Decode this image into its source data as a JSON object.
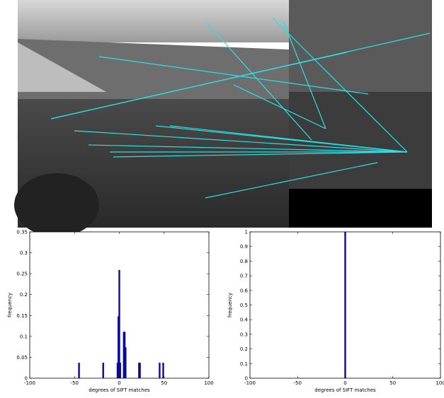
{
  "chart_data": [
    {
      "type": "bar",
      "x": [
        -45,
        -18,
        -2,
        -1,
        0,
        1,
        5,
        6,
        7,
        22,
        23,
        45,
        49
      ],
      "values": [
        0.037,
        0.037,
        0.037,
        0.148,
        0.259,
        0.037,
        0.111,
        0.111,
        0.074,
        0.037,
        0.037,
        0.037,
        0.037
      ],
      "color": "#0a0a96",
      "xlabel": "degrees of SIFT matches",
      "ylabel": "frequency",
      "xlim": [
        -100,
        100
      ],
      "xticks": [
        -100,
        -50,
        0,
        50,
        100
      ],
      "ylim": [
        0,
        0.35
      ],
      "yticks": [
        0,
        0.05,
        0.1,
        0.15,
        0.2,
        0.25,
        0.3,
        0.35
      ]
    },
    {
      "type": "bar",
      "x": [
        0
      ],
      "values": [
        1
      ],
      "color": "#0a0a96",
      "xlabel": "degrees of SIFT matches",
      "ylabel": "frequency",
      "xlim": [
        -100,
        100
      ],
      "xticks": [
        -100,
        -50,
        0,
        50,
        100
      ],
      "ylim": [
        0,
        1
      ],
      "yticks": [
        0,
        0.1,
        0.2,
        0.3,
        0.4,
        0.5,
        0.6,
        0.7,
        0.8,
        0.9,
        1
      ]
    }
  ]
}
